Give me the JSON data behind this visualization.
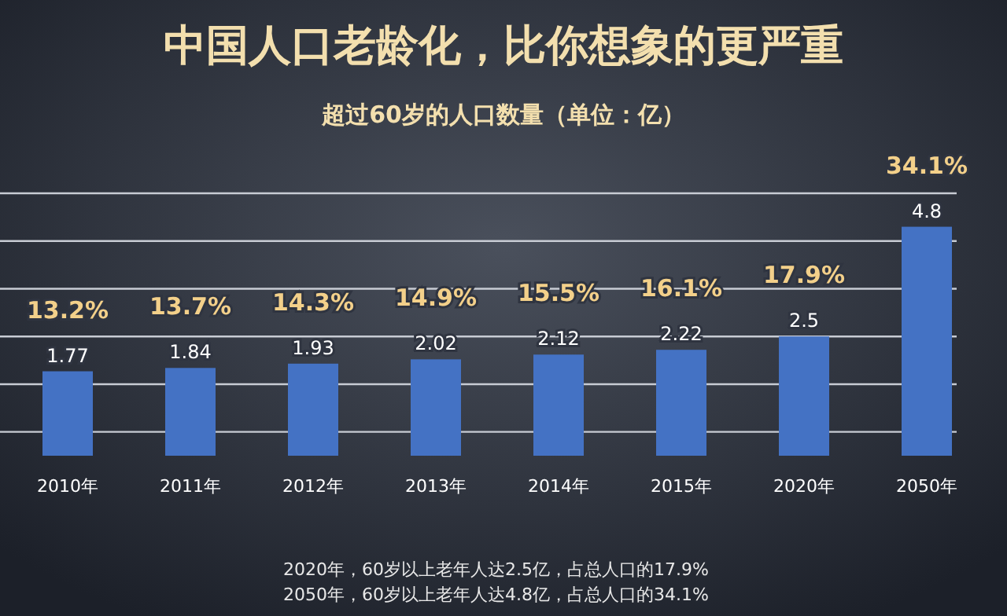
{
  "chart_data": {
    "type": "bar",
    "title": "中国人口老龄化，比你想象的更严重",
    "subtitle": "超过60岁的人口数量（单位：亿）",
    "categories": [
      "2010年",
      "2011年",
      "2012年",
      "2013年",
      "2014年",
      "2015年",
      "2020年",
      "2050年"
    ],
    "values": [
      1.77,
      1.84,
      1.93,
      2.02,
      2.12,
      2.22,
      2.5,
      4.8
    ],
    "color": "#4472c4",
    "data_labels": true,
    "ylim": [
      0,
      5.6
    ],
    "yticks": [
      {
        "value": 0.5,
        "label": null
      },
      {
        "value": 1.5,
        "label": null
      },
      {
        "value": 2.5,
        "label": null
      },
      {
        "value": 3.5,
        "label": null
      },
      {
        "value": 4.5,
        "label": null
      },
      {
        "value": 5.5,
        "label": null
      }
    ],
    "grid": "y",
    "tick_labels": "x",
    "annotations": [
      "13.2%",
      "13.7%",
      "14.3%",
      "14.9%",
      "15.5%",
      "16.1%",
      "17.9%",
      "34.1%",
      "2020年，60岁以上老年人达2.5亿，占总人口的17.9%",
      "2050年，60岁以上老年人达4.8亿，占总人口的34.1%"
    ]
  }
}
